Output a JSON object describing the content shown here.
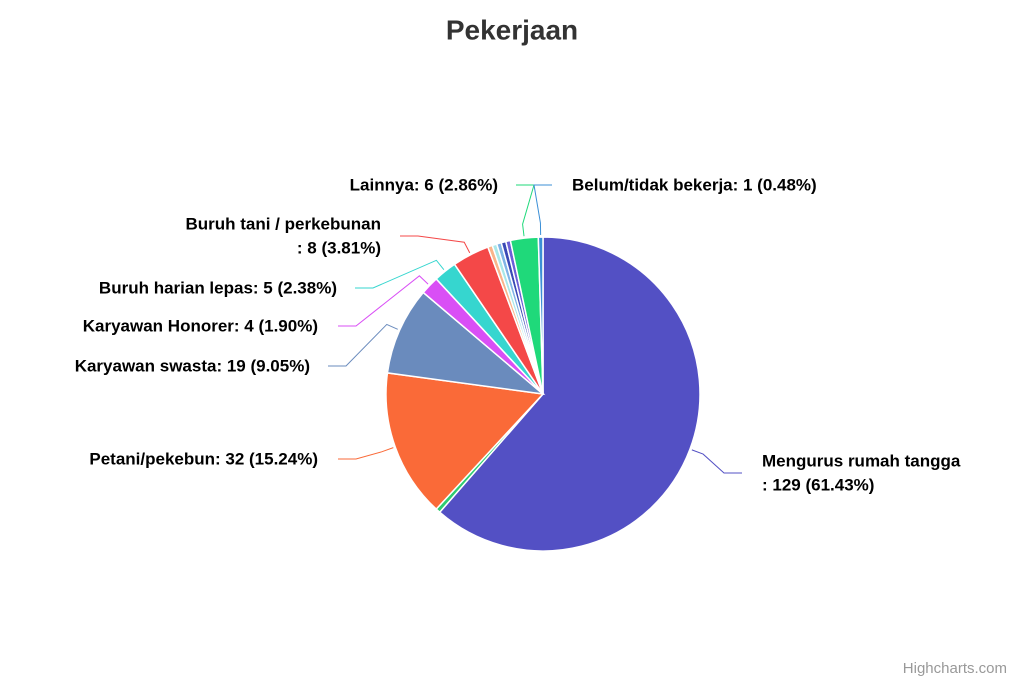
{
  "chart_data": {
    "type": "pie",
    "title": "Pekerjaan",
    "credits": "Highcharts.com",
    "values": [
      129,
      1,
      32,
      19,
      4,
      5,
      8,
      1,
      1,
      1,
      1,
      1,
      6,
      1
    ],
    "labels": [
      [
        "Mengurus rumah tangga",
        ": 129 (61.43%)"
      ],
      null,
      [
        "Petani/pekebun: 32 (15.24%)"
      ],
      [
        "Karyawan swasta: 19 (9.05%)"
      ],
      [
        "Karyawan Honorer: 4 (1.90%)"
      ],
      [
        "Buruh harian lepas: 5 (2.38%)"
      ],
      [
        "Buruh tani / perkebunan",
        ": 8 (3.81%)"
      ],
      null,
      null,
      null,
      null,
      null,
      [
        "Lainnya: 6 (2.86%)"
      ],
      [
        "Belum/tidak bekerja: 1 (0.48%)"
      ]
    ],
    "colors": [
      "#5350c4",
      "#2ecc71",
      "#fa6a38",
      "#6a8bbd",
      "#d94ff5",
      "#36d6cf",
      "#f44848",
      "#f9b48a",
      "#a9e8e8",
      "#80b4e6",
      "#3a49b5",
      "#6b5ed6",
      "#1fd97a",
      "#3b8fd6"
    ]
  }
}
